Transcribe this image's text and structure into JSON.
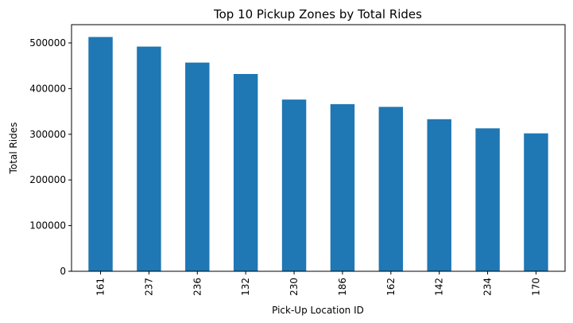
{
  "chart_data": {
    "type": "bar",
    "title": "Top 10 Pickup Zones by Total Rides",
    "xlabel": "Pick-Up Location ID",
    "ylabel": "Total Rides",
    "categories": [
      "161",
      "237",
      "236",
      "132",
      "230",
      "186",
      "162",
      "142",
      "234",
      "170"
    ],
    "values": [
      513000,
      492000,
      457000,
      432000,
      376000,
      366000,
      360000,
      333000,
      313000,
      302000
    ],
    "ylim": [
      0,
      540000
    ],
    "yticks": [
      0,
      100000,
      200000,
      300000,
      400000,
      500000
    ],
    "ytick_labels": [
      "0",
      "100000",
      "200000",
      "300000",
      "400000",
      "500000"
    ],
    "bar_color": "#1f77b4",
    "grid": false,
    "legend": "none"
  }
}
